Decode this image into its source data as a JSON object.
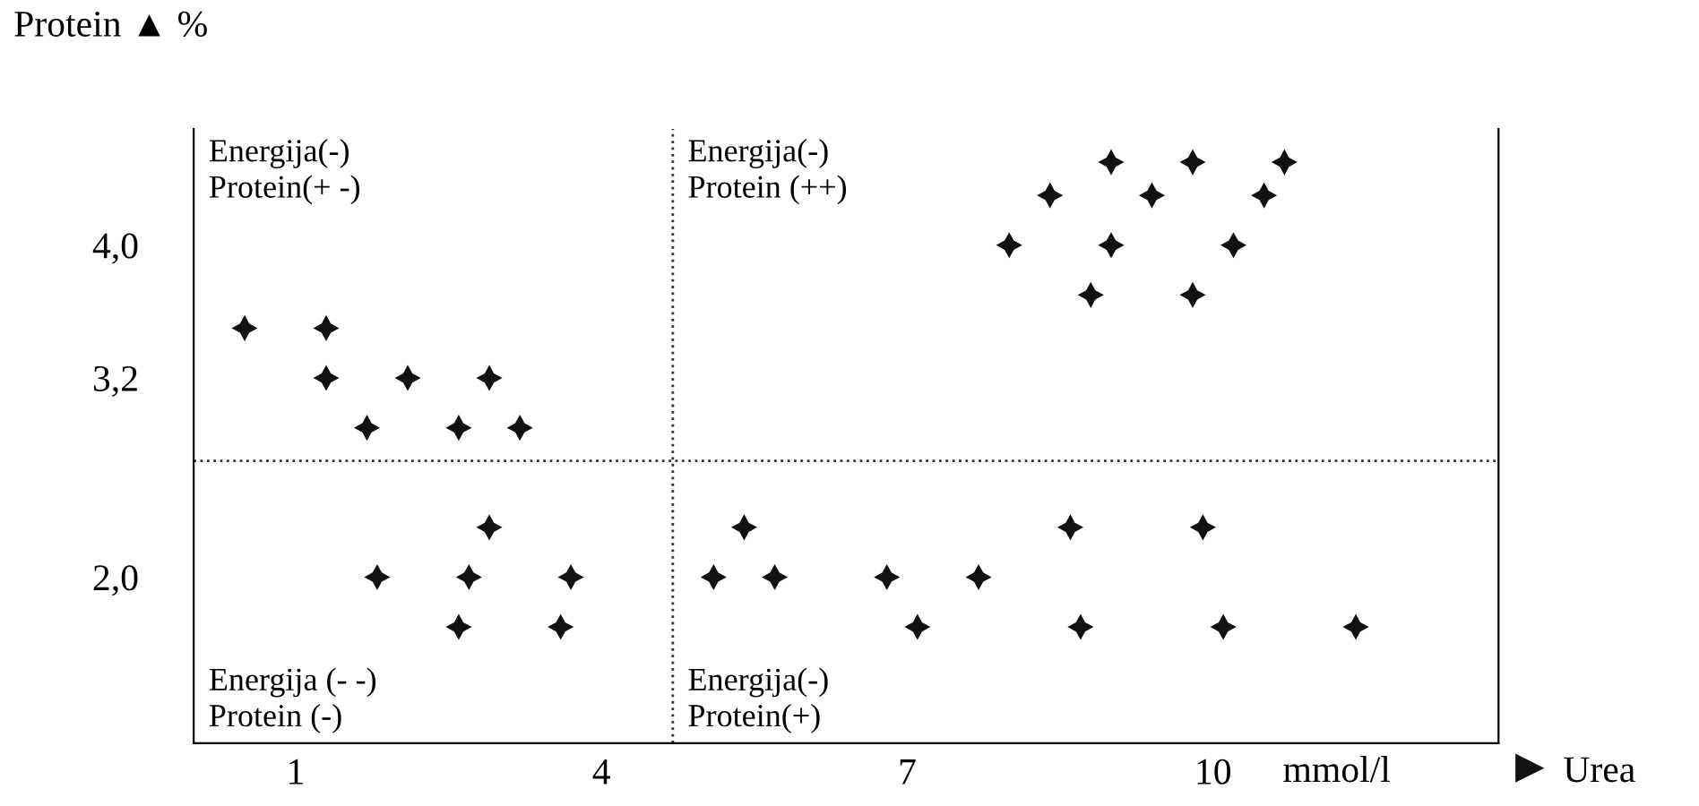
{
  "chart_data": {
    "type": "scatter",
    "xlabel": "Urea",
    "ylabel": "Protein ▲ %",
    "annotations": [
      "Energija(-)\nProtein(+ -)",
      "Energija(-)\nProtein (++)",
      "Energija (- -)\nProtein (-)",
      "Energija(-)\nProtein(+)",
      "mmol/l"
    ],
    "series": [
      {
        "color": "#111111",
        "x": [
          0.5,
          1.3,
          1.3,
          2.1,
          2.9,
          1.7,
          2.6,
          3.2,
          9.0,
          9.8,
          10.7,
          8.4,
          9.4,
          10.5,
          8.0,
          9.0,
          10.2,
          8.8,
          9.8,
          2.9,
          1.8,
          2.7,
          3.7,
          2.6,
          3.6,
          5.4,
          5.1,
          5.7,
          6.8,
          7.7,
          8.6,
          9.9,
          7.1,
          8.7,
          10.1,
          11.4
        ],
        "values": [
          3.5,
          3.5,
          3.2,
          3.2,
          3.2,
          2.9,
          2.9,
          2.9,
          4.5,
          4.5,
          4.5,
          4.3,
          4.3,
          4.3,
          4.0,
          4.0,
          4.0,
          3.7,
          3.7,
          2.3,
          2.0,
          2.0,
          2.0,
          1.7,
          1.7,
          2.3,
          2.0,
          2.0,
          2.0,
          2.0,
          2.3,
          2.3,
          1.7,
          1.7,
          1.7,
          1.7
        ]
      }
    ],
    "marker": "star",
    "xlim": [
      0,
      12.8
    ],
    "ylim": [
      1.0,
      4.7
    ],
    "xticks": [
      1,
      4,
      7,
      10
    ],
    "yticks": [
      {
        "value": 2.0,
        "label": "2,0"
      },
      {
        "value": 3.2,
        "label": "3,2"
      },
      {
        "value": 4.0,
        "label": "4,0"
      }
    ],
    "ref_lines": [
      {
        "axis": "x",
        "value": 4.7,
        "line_style": "dotted"
      },
      {
        "axis": "y",
        "value": 2.7,
        "line_style": "dotted"
      }
    ],
    "grid": false,
    "legend": false
  }
}
